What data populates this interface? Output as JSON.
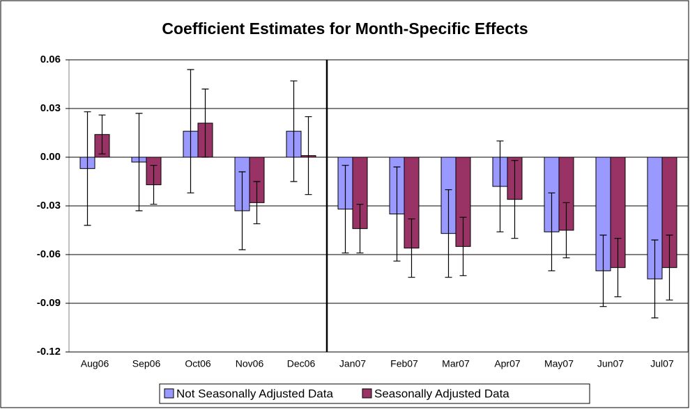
{
  "chart_data": {
    "type": "bar",
    "title": "Coefficient Estimates for Month-Specific Effects",
    "categories": [
      "Aug06",
      "Sep06",
      "Oct06",
      "Nov06",
      "Dec06",
      "Jan07",
      "Feb07",
      "Mar07",
      "Apr07",
      "May07",
      "Jun07",
      "Jul07"
    ],
    "series": [
      {
        "name": "Not Seasonally Adjusted Data",
        "color": "#9999ff",
        "values": [
          -0.007,
          -0.003,
          0.016,
          -0.033,
          0.016,
          -0.032,
          -0.035,
          -0.047,
          -0.018,
          -0.046,
          -0.07,
          -0.075
        ],
        "errors": [
          0.035,
          0.03,
          0.038,
          0.024,
          0.031,
          0.027,
          0.029,
          0.027,
          0.028,
          0.024,
          0.022,
          0.024
        ]
      },
      {
        "name": "Seasonally Adjusted Data",
        "color": "#993366",
        "values": [
          0.014,
          -0.017,
          0.021,
          -0.028,
          0.001,
          -0.044,
          -0.056,
          -0.055,
          -0.026,
          -0.045,
          -0.068,
          -0.068
        ],
        "errors": [
          0.012,
          0.012,
          0.021,
          0.013,
          0.024,
          0.015,
          0.018,
          0.018,
          0.024,
          0.017,
          0.018,
          0.02
        ]
      }
    ],
    "ylim": [
      -0.12,
      0.06
    ],
    "yticks": [
      -0.12,
      -0.09,
      -0.06,
      -0.03,
      {
        "value": 0,
        "label": "0.00"
      },
      0.03,
      0.06
    ],
    "grid": true,
    "legend": "bottom"
  }
}
